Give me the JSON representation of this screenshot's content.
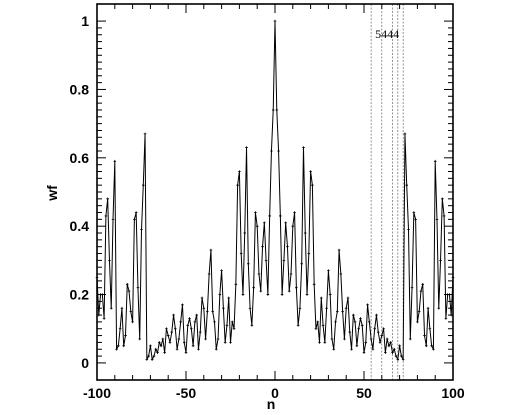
{
  "chart_data": {
    "type": "line",
    "title": "",
    "xlabel": "n",
    "ylabel": "wf",
    "xlim": [
      -100,
      100
    ],
    "ylim": [
      -0.05,
      1.05
    ],
    "x_ticks": [
      -100,
      -50,
      0,
      50,
      100
    ],
    "y_ticks": [
      0,
      0.2,
      0.4,
      0.6,
      0.8,
      1
    ],
    "y_tick_labels": [
      "0",
      "0.2",
      "0.4",
      "0.6",
      "0.8",
      "1"
    ],
    "grid": false,
    "series": [
      {
        "points": [
          [
            -100,
            0.25
          ],
          [
            -99,
            0.14
          ],
          [
            -98,
            0.2
          ],
          [
            -97,
            0.2
          ],
          [
            -96,
            0.13
          ],
          [
            -95,
            0.43
          ],
          [
            -94,
            0.48
          ],
          [
            -93,
            0.3
          ],
          [
            -92,
            0.16
          ],
          [
            -91,
            0.42
          ],
          [
            -90,
            0.59
          ],
          [
            -89,
            0.04
          ],
          [
            -88,
            0.05
          ],
          [
            -87,
            0.1
          ],
          [
            -86,
            0.16
          ],
          [
            -85,
            0.05
          ],
          [
            -84,
            0.08
          ],
          [
            -83,
            0.23
          ],
          [
            -82,
            0.21
          ],
          [
            -81,
            0.15
          ],
          [
            -80,
            0.12
          ],
          [
            -79,
            0.42
          ],
          [
            -78,
            0.44
          ],
          [
            -77,
            0.22
          ],
          [
            -76,
            0.07
          ],
          [
            -75,
            0.39
          ],
          [
            -74,
            0.52
          ],
          [
            -73,
            0.67
          ],
          [
            -72,
            0.01
          ],
          [
            -71,
            0.02
          ],
          [
            -70,
            0.05
          ],
          [
            -69,
            0.01
          ],
          [
            -68,
            0.02
          ],
          [
            -67,
            0.04
          ],
          [
            -66,
            0.03
          ],
          [
            -65,
            0.06
          ],
          [
            -64,
            0.05
          ],
          [
            -63,
            0.07
          ],
          [
            -62,
            0.03
          ],
          [
            -61,
            0.1
          ],
          [
            -60,
            0.08
          ],
          [
            -59,
            0.06
          ],
          [
            -58,
            0.09
          ],
          [
            -57,
            0.14
          ],
          [
            -56,
            0.1
          ],
          [
            -55,
            0.04
          ],
          [
            -54,
            0.07
          ],
          [
            -53,
            0.12
          ],
          [
            -52,
            0.17
          ],
          [
            -51,
            0.06
          ],
          [
            -50,
            0.03
          ],
          [
            -49,
            0.11
          ],
          [
            -48,
            0.13
          ],
          [
            -47,
            0.1
          ],
          [
            -46,
            0.05
          ],
          [
            -45,
            0.12
          ],
          [
            -44,
            0.14
          ],
          [
            -43,
            0.04
          ],
          [
            -42,
            0.09
          ],
          [
            -41,
            0.19
          ],
          [
            -40,
            0.16
          ],
          [
            -39,
            0.07
          ],
          [
            -38,
            0.15
          ],
          [
            -37,
            0.26
          ],
          [
            -36,
            0.33
          ],
          [
            -35,
            0.15
          ],
          [
            -34,
            0.12
          ],
          [
            -33,
            0.04
          ],
          [
            -32,
            0.07
          ],
          [
            -31,
            0.2
          ],
          [
            -30,
            0.27
          ],
          [
            -29,
            0.16
          ],
          [
            -28,
            0.06
          ],
          [
            -27,
            0.11
          ],
          [
            -26,
            0.19
          ],
          [
            -25,
            0.06
          ],
          [
            -24,
            0.12
          ],
          [
            -23,
            0.1
          ],
          [
            -22,
            0.23
          ],
          [
            -21,
            0.52
          ],
          [
            -20,
            0.56
          ],
          [
            -19,
            0.32
          ],
          [
            -18,
            0.2
          ],
          [
            -17,
            0.38
          ],
          [
            -16,
            0.63
          ],
          [
            -15,
            0.29
          ],
          [
            -14,
            0.16
          ],
          [
            -13,
            0.11
          ],
          [
            -12,
            0.22
          ],
          [
            -11,
            0.44
          ],
          [
            -10,
            0.4
          ],
          [
            -9,
            0.26
          ],
          [
            -8,
            0.21
          ],
          [
            -7,
            0.34
          ],
          [
            -6,
            0.41
          ],
          [
            -5,
            0.3
          ],
          [
            -4,
            0.2
          ],
          [
            -3,
            0.43
          ],
          [
            -2,
            0.62
          ],
          [
            -1,
            0.74
          ],
          [
            0,
            1.0
          ],
          [
            1,
            0.74
          ],
          [
            2,
            0.62
          ],
          [
            3,
            0.43
          ],
          [
            4,
            0.2
          ],
          [
            5,
            0.3
          ],
          [
            6,
            0.41
          ],
          [
            7,
            0.34
          ],
          [
            8,
            0.21
          ],
          [
            9,
            0.26
          ],
          [
            10,
            0.4
          ],
          [
            11,
            0.44
          ],
          [
            12,
            0.22
          ],
          [
            13,
            0.11
          ],
          [
            14,
            0.16
          ],
          [
            15,
            0.29
          ],
          [
            16,
            0.63
          ],
          [
            17,
            0.38
          ],
          [
            18,
            0.2
          ],
          [
            19,
            0.32
          ],
          [
            20,
            0.56
          ],
          [
            21,
            0.52
          ],
          [
            22,
            0.23
          ],
          [
            23,
            0.1
          ],
          [
            24,
            0.12
          ],
          [
            25,
            0.06
          ],
          [
            26,
            0.19
          ],
          [
            27,
            0.11
          ],
          [
            28,
            0.06
          ],
          [
            29,
            0.16
          ],
          [
            30,
            0.27
          ],
          [
            31,
            0.2
          ],
          [
            32,
            0.07
          ],
          [
            33,
            0.04
          ],
          [
            34,
            0.12
          ],
          [
            35,
            0.15
          ],
          [
            36,
            0.33
          ],
          [
            37,
            0.26
          ],
          [
            38,
            0.15
          ],
          [
            39,
            0.07
          ],
          [
            40,
            0.16
          ],
          [
            41,
            0.19
          ],
          [
            42,
            0.09
          ],
          [
            43,
            0.04
          ],
          [
            44,
            0.14
          ],
          [
            45,
            0.12
          ],
          [
            46,
            0.05
          ],
          [
            47,
            0.1
          ],
          [
            48,
            0.13
          ],
          [
            49,
            0.11
          ],
          [
            50,
            0.03
          ],
          [
            51,
            0.06
          ],
          [
            52,
            0.17
          ],
          [
            53,
            0.12
          ],
          [
            54,
            0.07
          ],
          [
            55,
            0.04
          ],
          [
            56,
            0.1
          ],
          [
            57,
            0.14
          ],
          [
            58,
            0.09
          ],
          [
            59,
            0.06
          ],
          [
            60,
            0.08
          ],
          [
            61,
            0.1
          ],
          [
            62,
            0.03
          ],
          [
            63,
            0.07
          ],
          [
            64,
            0.05
          ],
          [
            65,
            0.06
          ],
          [
            66,
            0.03
          ],
          [
            67,
            0.04
          ],
          [
            68,
            0.02
          ],
          [
            69,
            0.01
          ],
          [
            70,
            0.05
          ],
          [
            71,
            0.02
          ],
          [
            72,
            0.01
          ],
          [
            73,
            0.67
          ],
          [
            74,
            0.52
          ],
          [
            75,
            0.39
          ],
          [
            76,
            0.07
          ],
          [
            77,
            0.22
          ],
          [
            78,
            0.44
          ],
          [
            79,
            0.42
          ],
          [
            80,
            0.12
          ],
          [
            81,
            0.15
          ],
          [
            82,
            0.21
          ],
          [
            83,
            0.23
          ],
          [
            84,
            0.08
          ],
          [
            85,
            0.05
          ],
          [
            86,
            0.16
          ],
          [
            87,
            0.1
          ],
          [
            88,
            0.05
          ],
          [
            89,
            0.04
          ],
          [
            90,
            0.59
          ],
          [
            91,
            0.42
          ],
          [
            92,
            0.16
          ],
          [
            93,
            0.3
          ],
          [
            94,
            0.48
          ],
          [
            95,
            0.43
          ],
          [
            96,
            0.13
          ],
          [
            97,
            0.2
          ],
          [
            98,
            0.2
          ],
          [
            99,
            0.14
          ],
          [
            100,
            0.25
          ]
        ]
      }
    ],
    "vertical_lines_x": [
      54,
      60,
      66,
      69,
      72
    ],
    "annotations": [
      {
        "text": "5444",
        "x": 63,
        "y": 0.95
      }
    ]
  }
}
